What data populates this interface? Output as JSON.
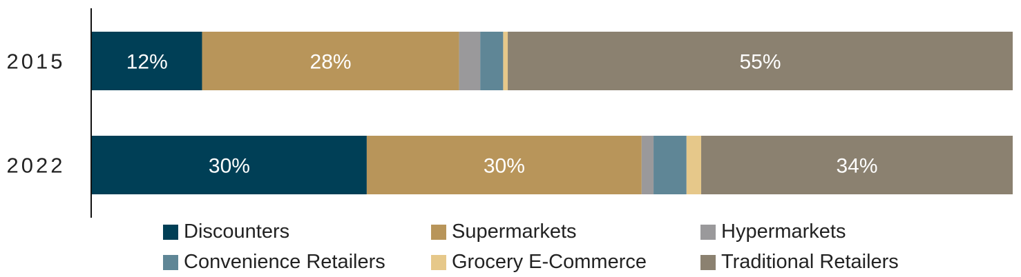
{
  "chart_data": {
    "type": "bar",
    "orientation": "horizontal",
    "stacked": true,
    "categories": [
      "2015",
      "2022"
    ],
    "series": [
      {
        "name": "Discounters",
        "color": "#003f56",
        "values": [
          12,
          30
        ],
        "labels": [
          "12%",
          "30%"
        ]
      },
      {
        "name": "Supermarkets",
        "color": "#b8955a",
        "values": [
          28,
          30
        ],
        "labels": [
          "28%",
          "30%"
        ]
      },
      {
        "name": "Hypermarkets",
        "color": "#9a999b",
        "values": [
          2.3,
          1.3
        ],
        "labels": [
          "",
          ""
        ]
      },
      {
        "name": "Convenience Retailers",
        "color": "#5f8696",
        "values": [
          2.5,
          3.6
        ],
        "labels": [
          "",
          ""
        ]
      },
      {
        "name": "Grocery E-Commerce",
        "color": "#e6c88a",
        "values": [
          0.5,
          1.6
        ],
        "labels": [
          "",
          ""
        ]
      },
      {
        "name": "Traditional Retailers",
        "color": "#8b8170",
        "values": [
          55,
          34
        ],
        "labels": [
          "55%",
          "34%"
        ]
      }
    ],
    "xlim": [
      0,
      100
    ],
    "legend_position": "bottom",
    "grid": false,
    "title": "",
    "xlabel": "",
    "ylabel": ""
  }
}
